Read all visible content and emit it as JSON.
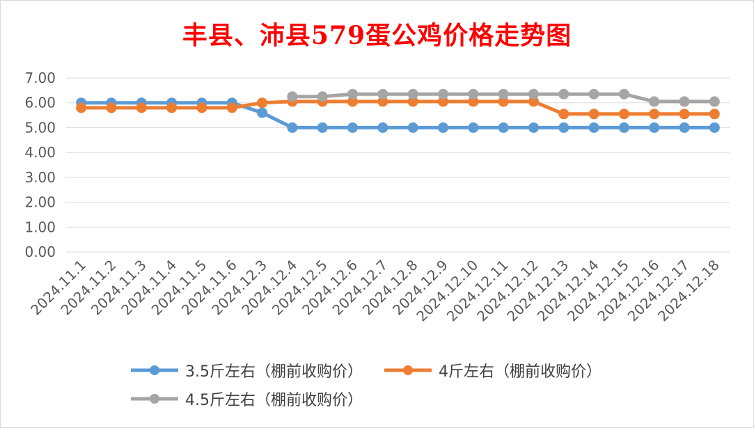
{
  "chart_data": {
    "type": "line",
    "title": "丰县、沛县579蛋公鸡价格走势图",
    "xlabel": "",
    "ylabel": "",
    "ylim": [
      0,
      7
    ],
    "yticks": [
      "0.00",
      "1.00",
      "2.00",
      "3.00",
      "4.00",
      "5.00",
      "6.00",
      "7.00"
    ],
    "grid": true,
    "legend_position": "bottom",
    "categories": [
      "2024.11.1",
      "2024.11.2",
      "2024.11.3",
      "2024.11.4",
      "2024.11.5",
      "2024.11.6",
      "2024.12.3",
      "2024.12.4",
      "2024.12.5",
      "2024.12.6",
      "2024.12.7",
      "2024.12.8",
      "2024.12.9",
      "2024.12.10",
      "2024.12.11",
      "2024.12.12",
      "2024.12.13",
      "2024.12.14",
      "2024.12.15",
      "2024.12.16",
      "2024.12.17",
      "2024.12.18"
    ],
    "series": [
      {
        "name": "3.5斤左右（棚前收购价）",
        "color": "#5b9bd5",
        "values": [
          6.0,
          6.0,
          6.0,
          6.0,
          6.0,
          6.0,
          5.6,
          5.0,
          5.0,
          5.0,
          5.0,
          5.0,
          5.0,
          5.0,
          5.0,
          5.0,
          5.0,
          5.0,
          5.0,
          5.0,
          5.0,
          5.0
        ]
      },
      {
        "name": "4斤左右（棚前收购价）",
        "color": "#ed7d31",
        "values": [
          5.8,
          5.8,
          5.8,
          5.8,
          5.8,
          5.8,
          6.0,
          6.05,
          6.05,
          6.05,
          6.05,
          6.05,
          6.05,
          6.05,
          6.05,
          6.05,
          5.55,
          5.55,
          5.55,
          5.55,
          5.55,
          5.55
        ]
      },
      {
        "name": "4.5斤左右（棚前收购价）",
        "color": "#a5a5a5",
        "values": [
          null,
          null,
          null,
          null,
          null,
          null,
          null,
          6.25,
          6.25,
          6.35,
          6.35,
          6.35,
          6.35,
          6.35,
          6.35,
          6.35,
          6.35,
          6.35,
          6.35,
          6.05,
          6.05,
          6.05
        ]
      }
    ]
  }
}
